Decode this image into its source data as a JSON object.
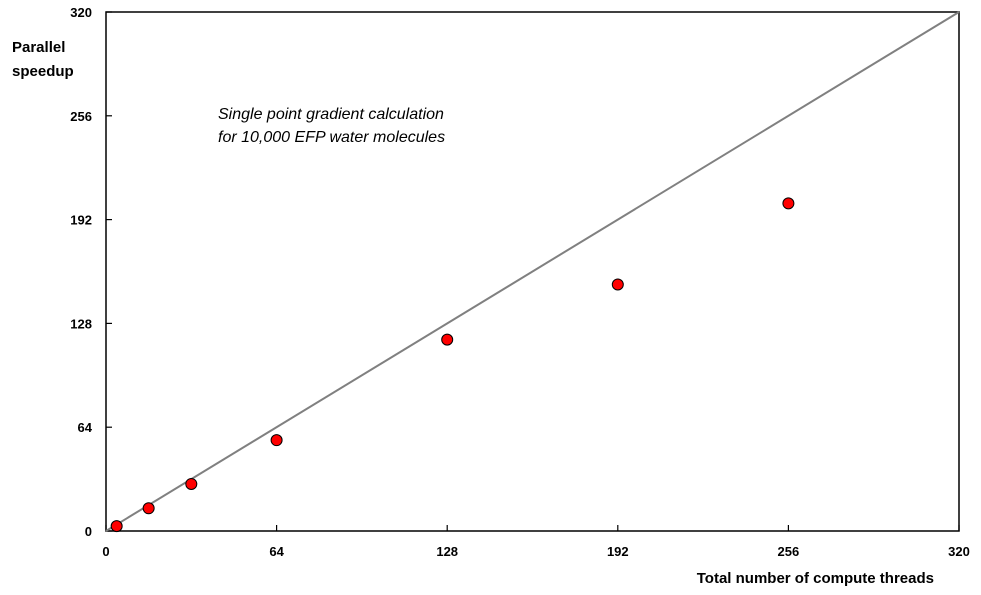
{
  "chart_data": {
    "type": "scatter",
    "title": "",
    "xlabel": "Total number of compute threads",
    "ylabel_lines": [
      "Parallel",
      "speedup"
    ],
    "annotation_lines": [
      "Single point gradient calculation",
      "for 10,000 EFP water molecules"
    ],
    "xlim": [
      0,
      320
    ],
    "ylim": [
      0,
      320
    ],
    "xticks": [
      0,
      64,
      128,
      192,
      256,
      320
    ],
    "yticks": [
      0,
      64,
      128,
      192,
      256,
      320
    ],
    "grid": false,
    "legend": "none",
    "reference_line": {
      "from": [
        0,
        0
      ],
      "to": [
        320,
        320
      ],
      "color": "#808080"
    },
    "series": [
      {
        "color": "#ff0000",
        "x": [
          4,
          16,
          32,
          64,
          128,
          192,
          256
        ],
        "y": [
          3,
          14,
          29,
          56,
          118,
          152,
          202
        ]
      }
    ]
  }
}
